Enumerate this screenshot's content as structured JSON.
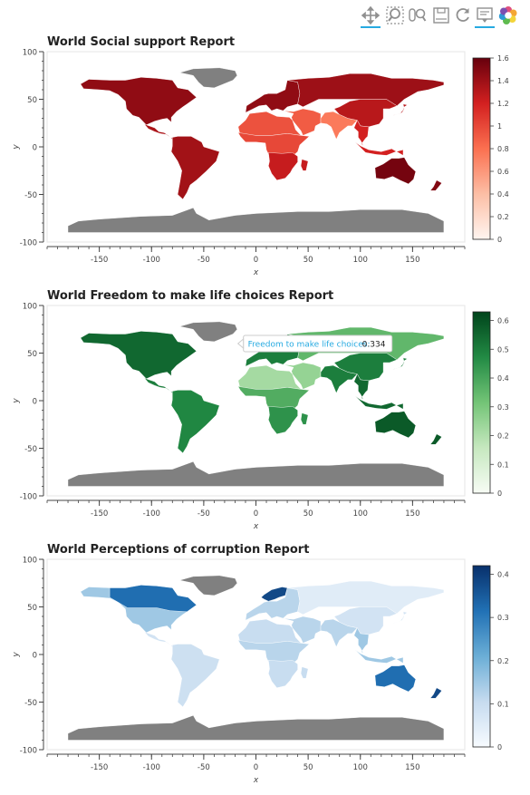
{
  "toolbar": {
    "tools": [
      {
        "name": "pan-tool",
        "icon": "pan-icon",
        "active": true
      },
      {
        "name": "box-zoom-tool",
        "icon": "box-zoom-icon",
        "active": false
      },
      {
        "name": "wheel-zoom-tool",
        "icon": "wheel-zoom-icon",
        "active": false
      },
      {
        "name": "save-tool",
        "icon": "save-icon",
        "active": false
      },
      {
        "name": "reset-tool",
        "icon": "reset-icon",
        "active": false
      },
      {
        "name": "hover-tool",
        "icon": "hover-icon",
        "active": true
      },
      {
        "name": "bokeh-logo",
        "icon": "bokeh-logo-icon",
        "active": false
      }
    ]
  },
  "chart_data": [
    {
      "type": "choropleth",
      "title": "World Social support Report",
      "xlabel": "x",
      "ylabel": "y",
      "xlim": [
        -200,
        200
      ],
      "ylim": [
        -100,
        100
      ],
      "xticks": [
        -150,
        -100,
        -50,
        0,
        50,
        100,
        150
      ],
      "yticks": [
        100,
        50,
        0,
        -50,
        -100
      ],
      "colorbar": {
        "palette": "Reds",
        "min": 0,
        "max": 1.6,
        "ticks": [
          0,
          0.2,
          0.4,
          0.6,
          0.8,
          1,
          1.2,
          1.4,
          1.6
        ],
        "colors": [
          "#fff5f0",
          "#fcbea5",
          "#fb7050",
          "#d32020",
          "#67000d"
        ]
      },
      "no_data_color": "#808080",
      "regions": [
        {
          "region": "north-america",
          "value": 1.45
        },
        {
          "region": "greenland",
          "value": null
        },
        {
          "region": "central-america",
          "value": 1.35
        },
        {
          "region": "south-america",
          "value": 1.38
        },
        {
          "region": "europe",
          "value": 1.45
        },
        {
          "region": "russia",
          "value": 1.4
        },
        {
          "region": "middle-east",
          "value": 0.9
        },
        {
          "region": "north-africa",
          "value": 0.95
        },
        {
          "region": "sub-saharan-africa",
          "value": 1.0
        },
        {
          "region": "southern-africa",
          "value": 1.25
        },
        {
          "region": "south-asia",
          "value": 0.75
        },
        {
          "region": "east-asia",
          "value": 1.3
        },
        {
          "region": "southeast-asia",
          "value": 1.2
        },
        {
          "region": "australia",
          "value": 1.55
        },
        {
          "region": "new-zealand",
          "value": 1.5
        },
        {
          "region": "antarctica",
          "value": null
        }
      ],
      "tooltip": null
    },
    {
      "type": "choropleth",
      "title": "World Freedom to make life choices Report",
      "xlabel": "x",
      "ylabel": "y",
      "xlim": [
        -200,
        200
      ],
      "ylim": [
        -100,
        100
      ],
      "xticks": [
        -150,
        -100,
        -50,
        0,
        50,
        100,
        150
      ],
      "yticks": [
        100,
        50,
        0,
        -50,
        -100
      ],
      "colorbar": {
        "palette": "Greens",
        "min": 0,
        "max": 0.63,
        "ticks": [
          0,
          0.1,
          0.2,
          0.3,
          0.4,
          0.5,
          0.6
        ],
        "colors": [
          "#f7fcf5",
          "#c6e8bf",
          "#73c476",
          "#228a44",
          "#00441b"
        ]
      },
      "no_data_color": "#808080",
      "regions": [
        {
          "region": "north-america",
          "value": 0.55
        },
        {
          "region": "greenland",
          "value": null
        },
        {
          "region": "central-america",
          "value": 0.5
        },
        {
          "region": "south-america",
          "value": 0.48
        },
        {
          "region": "europe",
          "value": 0.5
        },
        {
          "region": "russia",
          "value": 0.35
        },
        {
          "region": "middle-east",
          "value": 0.25
        },
        {
          "region": "north-africa",
          "value": 0.22
        },
        {
          "region": "sub-saharan-africa",
          "value": 0.38
        },
        {
          "region": "southern-africa",
          "value": 0.45
        },
        {
          "region": "south-asia",
          "value": 0.5
        },
        {
          "region": "east-asia",
          "value": 0.5
        },
        {
          "region": "southeast-asia",
          "value": 0.55
        },
        {
          "region": "australia",
          "value": 0.58
        },
        {
          "region": "new-zealand",
          "value": 0.58
        },
        {
          "region": "antarctica",
          "value": null
        }
      ],
      "tooltip": {
        "label": "Freedom to make life choices:",
        "value": "0.334",
        "x": -12,
        "y": 60
      }
    },
    {
      "type": "choropleth",
      "title": "World Perceptions of corruption Report",
      "xlabel": "x",
      "ylabel": "y",
      "xlim": [
        -200,
        200
      ],
      "ylim": [
        -100,
        100
      ],
      "xticks": [
        -150,
        -100,
        -50,
        0,
        50,
        100,
        150
      ],
      "yticks": [
        100,
        50,
        0,
        -50,
        -100
      ],
      "colorbar": {
        "palette": "Blues",
        "min": 0,
        "max": 0.42,
        "ticks": [
          0,
          0.1,
          0.2,
          0.3,
          0.4
        ],
        "colors": [
          "#f7fbff",
          "#c6dbef",
          "#6baed6",
          "#2171b5",
          "#08306b"
        ]
      },
      "no_data_color": "#808080",
      "regions": [
        {
          "region": "north-america",
          "value": 0.15
        },
        {
          "region": "canada",
          "value": 0.32
        },
        {
          "region": "greenland",
          "value": null
        },
        {
          "region": "central-america",
          "value": 0.08
        },
        {
          "region": "south-america",
          "value": 0.09
        },
        {
          "region": "europe",
          "value": 0.12
        },
        {
          "region": "scandinavia",
          "value": 0.38
        },
        {
          "region": "russia",
          "value": 0.05
        },
        {
          "region": "middle-east",
          "value": 0.12
        },
        {
          "region": "north-africa",
          "value": 0.1
        },
        {
          "region": "sub-saharan-africa",
          "value": 0.12
        },
        {
          "region": "southern-africa",
          "value": 0.1
        },
        {
          "region": "south-asia",
          "value": 0.12
        },
        {
          "region": "east-asia",
          "value": 0.08
        },
        {
          "region": "southeast-asia",
          "value": 0.15
        },
        {
          "region": "australia",
          "value": 0.32
        },
        {
          "region": "new-zealand",
          "value": 0.38
        },
        {
          "region": "antarctica",
          "value": null
        }
      ],
      "tooltip": null
    }
  ]
}
